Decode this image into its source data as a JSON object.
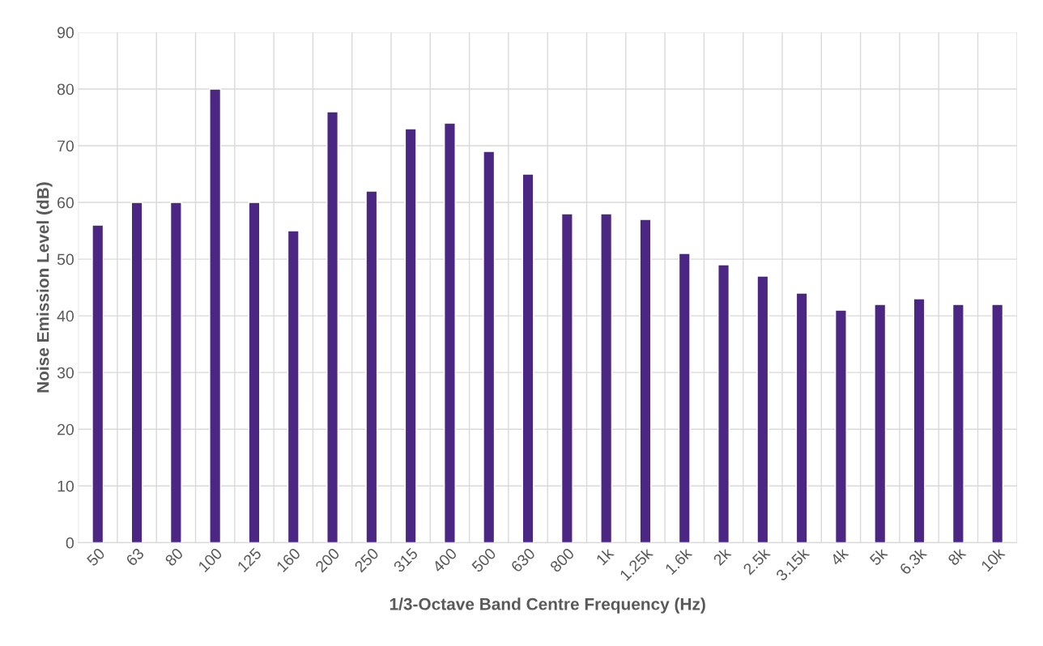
{
  "chart_data": {
    "type": "bar",
    "xlabel": "1/3-Octave Band Centre Frequency (Hz)",
    "ylabel": "Noise Emission Level (dB)",
    "categories": [
      "50",
      "63",
      "80",
      "100",
      "125",
      "160",
      "200",
      "250",
      "315",
      "400",
      "500",
      "630",
      "800",
      "1k",
      "1.25k",
      "1.6k",
      "2k",
      "2.5k",
      "3.15k",
      "4k",
      "5k",
      "6.3k",
      "8k",
      "10k"
    ],
    "values": [
      56,
      60,
      60,
      80,
      60,
      55,
      76,
      62,
      73,
      74,
      69,
      65,
      58,
      58,
      57,
      51,
      49,
      47,
      44,
      41,
      42,
      43,
      42,
      42
    ],
    "color": "#4b2683",
    "ylim": [
      0,
      90
    ],
    "yticks": [
      0,
      10,
      20,
      30,
      40,
      50,
      60,
      70,
      80,
      90
    ],
    "grid": true,
    "legend": false
  }
}
